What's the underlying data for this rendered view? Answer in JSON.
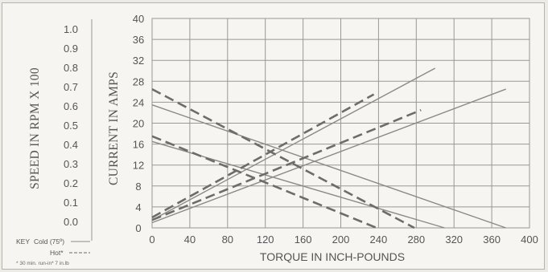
{
  "chart_data": {
    "type": "line",
    "xlabel": "TORQUE IN INCH-POUNDS",
    "ylabel_left": "SPEED IN RPM X 100",
    "ylabel_right": "CURRENT IN AMPS",
    "x_ticks": [
      "0",
      "40",
      "80",
      "120",
      "160",
      "200",
      "240",
      "280",
      "320",
      "360",
      "400"
    ],
    "speed_ticks": [
      "0.0",
      "0.1",
      "0.2",
      "0.3",
      "0.4",
      "0.5",
      "0.6",
      "0.7",
      "0.8",
      "0.9",
      "1.0"
    ],
    "current_ticks": [
      "0",
      "4",
      "8",
      "12",
      "16",
      "20",
      "24",
      "28",
      "32",
      "36",
      "40"
    ],
    "xlim": [
      0,
      400
    ],
    "speed_lim": [
      0,
      1.0
    ],
    "current_lim": [
      0,
      40
    ],
    "grid": true,
    "colors": {
      "cold": "#8c8a86",
      "hot": "#6e6c69",
      "grid": "#9a9894"
    },
    "series": [
      {
        "style": "cold",
        "axis": "current",
        "x": [
          0,
          300
        ],
        "y": [
          1.5,
          30.5
        ]
      },
      {
        "style": "cold",
        "axis": "current",
        "x": [
          0,
          375
        ],
        "y": [
          1.0,
          26.5
        ]
      },
      {
        "style": "cold",
        "axis": "current",
        "x": [
          0,
          310
        ],
        "y": [
          16.5,
          0
        ]
      },
      {
        "style": "cold",
        "axis": "current",
        "x": [
          0,
          375
        ],
        "y": [
          23.5,
          0
        ]
      },
      {
        "style": "hot",
        "axis": "current",
        "x": [
          0,
          235
        ],
        "y": [
          2.0,
          25.5
        ]
      },
      {
        "style": "hot",
        "axis": "current",
        "x": [
          0,
          285
        ],
        "y": [
          1.5,
          22.5
        ]
      },
      {
        "style": "hot",
        "axis": "current",
        "x": [
          0,
          238
        ],
        "y": [
          17.5,
          0
        ]
      },
      {
        "style": "hot",
        "axis": "current",
        "x": [
          0,
          278
        ],
        "y": [
          26.5,
          0
        ]
      }
    ]
  },
  "key": {
    "title": "KEY",
    "cold": "Cold (75º)",
    "hot": "Hot*",
    "footnote": "* 30 min. run-in* 7 in.lb"
  }
}
